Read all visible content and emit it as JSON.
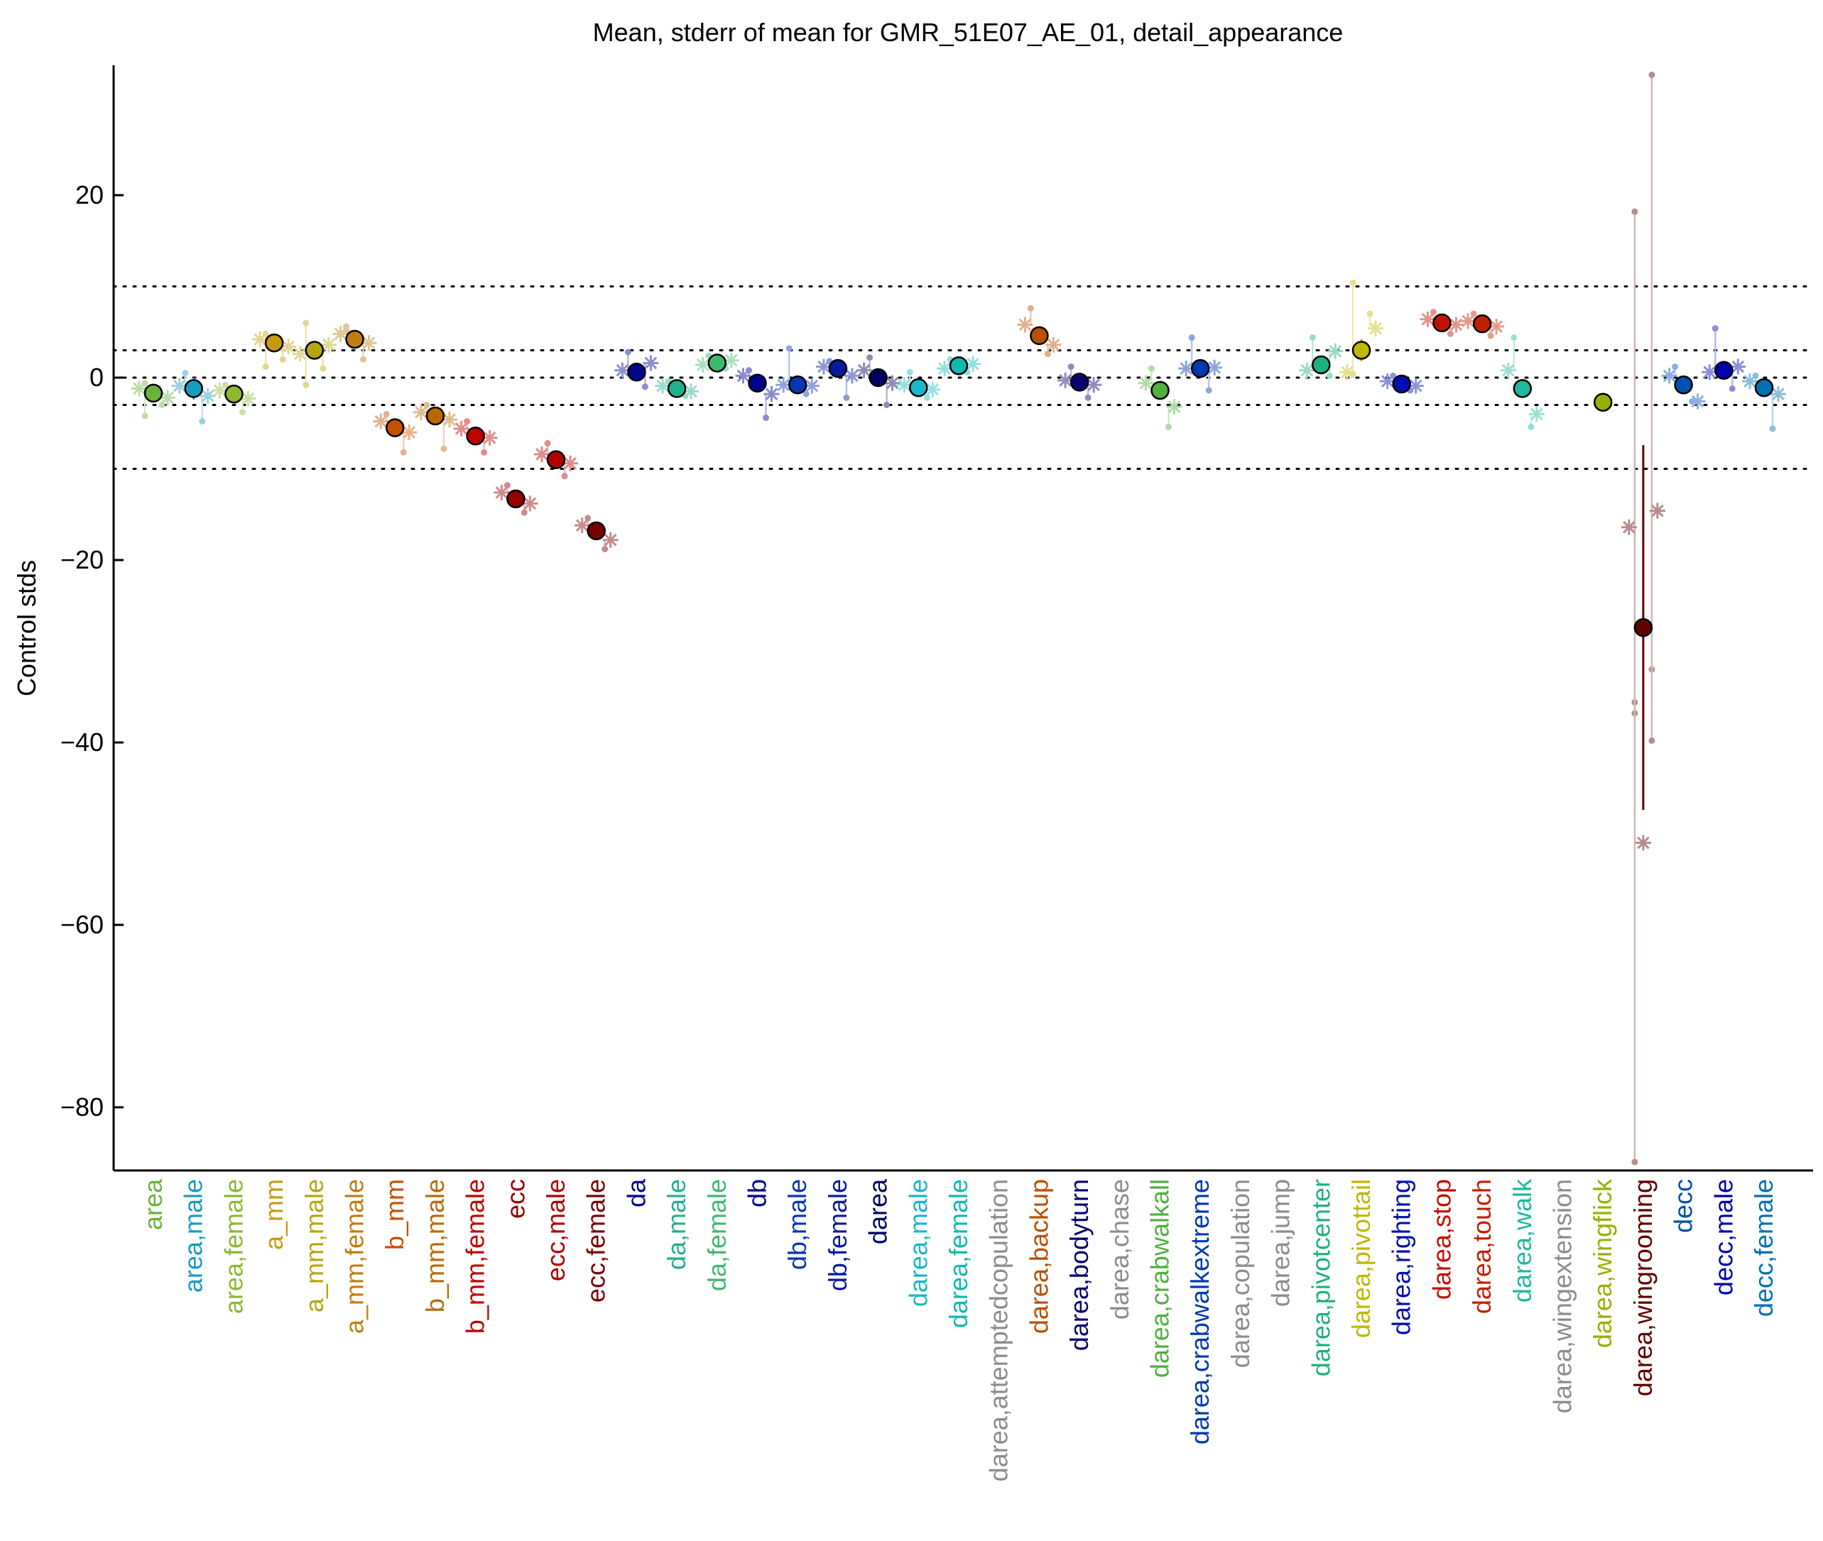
{
  "chart_data": {
    "type": "scatter",
    "title": "Mean, stderr of mean for GMR_51E07_AE_01, detail_appearance",
    "ylabel": "Control stds",
    "xlabel": "",
    "ylim": [
      -87,
      34
    ],
    "yticks": [
      20,
      0,
      -20,
      -40,
      -60,
      -80
    ],
    "reference_lines": [
      10,
      3,
      0,
      -3,
      -10
    ],
    "grid": false,
    "categories": [
      {
        "label": "area",
        "color": "#6ab23c",
        "mean": -1.7,
        "err": 0.6,
        "male": -1.2,
        "female": -2.2,
        "pts": [
          -0.6,
          -3.0,
          -4.2
        ]
      },
      {
        "label": "area,male",
        "color": "#1a9bc0",
        "mean": -1.2,
        "err": 1.2,
        "male": -0.9,
        "female": -2.0,
        "pts": [
          0.5,
          -4.8
        ]
      },
      {
        "label": "area,female",
        "color": "#8db830",
        "mean": -1.8,
        "err": 0.7,
        "male": -1.4,
        "female": -2.3,
        "pts": [
          -0.8,
          -3.8
        ]
      },
      {
        "label": "a_mm",
        "color": "#c79a10",
        "mean": 3.8,
        "err": 0.5,
        "male": 4.2,
        "female": 3.4,
        "pts": [
          4.8,
          2.0,
          1.2
        ]
      },
      {
        "label": "a_mm,male",
        "color": "#b8a512",
        "mean": 3.0,
        "err": 0.8,
        "male": 2.6,
        "female": 3.6,
        "pts": [
          6.0,
          1.0,
          -0.8
        ]
      },
      {
        "label": "a_mm,female",
        "color": "#c17d10",
        "mean": 4.2,
        "err": 0.8,
        "male": 4.8,
        "female": 3.8,
        "pts": [
          5.6,
          2.0,
          5.2
        ]
      },
      {
        "label": "b_mm",
        "color": "#c55000",
        "mean": -5.5,
        "err": 0.6,
        "male": -4.8,
        "female": -6.0,
        "pts": [
          -4.0,
          -8.2
        ]
      },
      {
        "label": "b_mm,male",
        "color": "#b86a00",
        "mean": -4.2,
        "err": 0.9,
        "male": -3.8,
        "female": -4.6,
        "pts": [
          -3.0,
          -7.8
        ]
      },
      {
        "label": "b_mm,female",
        "color": "#c00000",
        "mean": -6.4,
        "err": 0.6,
        "male": -5.6,
        "female": -6.6,
        "pts": [
          -4.8,
          -8.2
        ]
      },
      {
        "label": "ecc",
        "color": "#960000",
        "mean": -13.3,
        "err": 0.6,
        "male": -12.6,
        "female": -13.8,
        "pts": [
          -11.8,
          -14.8
        ]
      },
      {
        "label": "ecc,male",
        "color": "#b00000",
        "mean": -9.0,
        "err": 0.8,
        "male": -8.4,
        "female": -9.4,
        "pts": [
          -7.2,
          -10.8
        ]
      },
      {
        "label": "ecc,female",
        "color": "#7a0000",
        "mean": -16.8,
        "err": 0.7,
        "male": -16.2,
        "female": -17.8,
        "pts": [
          -15.4,
          -18.8
        ]
      },
      {
        "label": "da",
        "color": "#00058c",
        "mean": 0.6,
        "err": 0.5,
        "male": 0.8,
        "female": 1.6,
        "pts": [
          2.8,
          -1.0
        ]
      },
      {
        "label": "da,male",
        "color": "#20b090",
        "mean": -1.2,
        "err": 0.4,
        "male": -0.9,
        "female": -1.5,
        "pts": [
          -0.4,
          -2.0
        ]
      },
      {
        "label": "da,female",
        "color": "#40b870",
        "mean": 1.6,
        "err": 0.4,
        "male": 1.4,
        "female": 1.9,
        "pts": [
          2.4,
          1.0
        ]
      },
      {
        "label": "db",
        "color": "#00008c",
        "mean": -0.6,
        "err": 0.6,
        "male": 0.2,
        "female": -1.8,
        "pts": [
          0.8,
          -4.4
        ]
      },
      {
        "label": "db,male",
        "color": "#0835b0",
        "mean": -0.8,
        "err": 0.8,
        "male": -0.8,
        "female": -0.9,
        "pts": [
          3.2,
          -1.8
        ]
      },
      {
        "label": "db,female",
        "color": "#0818a0",
        "mean": 1.0,
        "err": 0.5,
        "male": 1.2,
        "female": 0.2,
        "pts": [
          1.8,
          -2.2
        ]
      },
      {
        "label": "darea",
        "color": "#000060",
        "mean": 0.0,
        "err": 0.7,
        "male": 0.8,
        "female": -0.6,
        "pts": [
          2.2,
          -3.0
        ]
      },
      {
        "label": "darea,male",
        "color": "#18b8c8",
        "mean": -1.1,
        "err": 0.5,
        "male": -0.8,
        "female": -1.3,
        "pts": [
          0.6,
          -2.2
        ]
      },
      {
        "label": "darea,female",
        "color": "#10b8b0",
        "mean": 1.3,
        "err": 0.4,
        "male": 1.0,
        "female": 1.5,
        "pts": [
          2.0,
          0.6
        ]
      },
      {
        "label": "darea,attemptedcopulation",
        "color": "#8c8c8c",
        "mean": null,
        "err": null,
        "male": null,
        "female": null,
        "pts": []
      },
      {
        "label": "darea,backup",
        "color": "#b85000",
        "mean": 4.6,
        "err": 0.6,
        "male": 5.8,
        "female": 3.6,
        "pts": [
          7.6,
          2.6
        ]
      },
      {
        "label": "darea,bodyturn",
        "color": "#080070",
        "mean": -0.5,
        "err": 0.5,
        "male": -0.3,
        "female": -0.8,
        "pts": [
          1.2,
          -2.2
        ]
      },
      {
        "label": "darea,chase",
        "color": "#8c8c8c",
        "mean": null,
        "err": null,
        "male": null,
        "female": null,
        "pts": []
      },
      {
        "label": "darea,crabwalkall",
        "color": "#50b040",
        "mean": -1.4,
        "err": 0.6,
        "male": -0.6,
        "female": -3.2,
        "pts": [
          1.0,
          -5.4
        ]
      },
      {
        "label": "darea,crabwalkextreme",
        "color": "#0038b0",
        "mean": 1.0,
        "err": 0.8,
        "male": 1.0,
        "female": 1.1,
        "pts": [
          4.4,
          -1.4
        ]
      },
      {
        "label": "darea,copulation",
        "color": "#8c8c8c",
        "mean": null,
        "err": null,
        "male": null,
        "female": null,
        "pts": []
      },
      {
        "label": "darea,jump",
        "color": "#8c8c8c",
        "mean": null,
        "err": null,
        "male": null,
        "female": null,
        "pts": []
      },
      {
        "label": "darea,pivotcenter",
        "color": "#20b080",
        "mean": 1.4,
        "err": 0.6,
        "male": 0.8,
        "female": 2.9,
        "pts": [
          4.4,
          0.2
        ]
      },
      {
        "label": "darea,pivottail",
        "color": "#c0b800",
        "mean": 3.0,
        "err": 1.2,
        "male": 0.6,
        "female": 5.4,
        "pts": [
          10.4,
          7.0,
          0.4
        ]
      },
      {
        "label": "darea,righting",
        "color": "#0010b0",
        "mean": -0.7,
        "err": 0.4,
        "male": -0.4,
        "female": -0.9,
        "pts": [
          0.2,
          -1.4
        ]
      },
      {
        "label": "darea,stop",
        "color": "#c01000",
        "mean": 6.0,
        "err": 0.5,
        "male": 6.4,
        "female": 5.8,
        "pts": [
          7.2,
          4.8
        ]
      },
      {
        "label": "darea,touch",
        "color": "#c02000",
        "mean": 5.9,
        "err": 0.5,
        "male": 6.2,
        "female": 5.6,
        "pts": [
          7.0,
          4.6
        ]
      },
      {
        "label": "darea,walk",
        "color": "#20b8a0",
        "mean": -1.2,
        "err": 0.6,
        "male": 0.8,
        "female": -4.0,
        "pts": [
          4.4,
          -5.4
        ]
      },
      {
        "label": "darea,wingextension",
        "color": "#8c8c8c",
        "mean": null,
        "err": null,
        "male": null,
        "female": null,
        "pts": []
      },
      {
        "label": "darea,wingflick",
        "color": "#98b000",
        "mean": -2.7,
        "err": 0.2,
        "male": null,
        "female": null,
        "pts": []
      },
      {
        "label": "darea,wingrooming",
        "color": "#600000",
        "mean": -27.4,
        "err": 20.0,
        "male": -16.4,
        "female": -14.6,
        "extra": -51.0,
        "pts": [
          18.2,
          -32.0,
          -35.6,
          33.2,
          -36.8,
          -39.8,
          -86.0
        ]
      },
      {
        "label": "decc",
        "color": "#0050b0",
        "mean": -0.8,
        "err": 0.5,
        "male": 0.2,
        "female": -2.6,
        "pts": [
          1.2,
          -2.6
        ]
      },
      {
        "label": "decc,male",
        "color": "#0000b0",
        "mean": 0.8,
        "err": 0.6,
        "male": 0.6,
        "female": 1.2,
        "pts": [
          5.4,
          -1.2
        ]
      },
      {
        "label": "decc,female",
        "color": "#0070b0",
        "mean": -1.1,
        "err": 0.5,
        "male": -0.4,
        "female": -1.8,
        "pts": [
          0.2,
          -5.6
        ]
      }
    ]
  }
}
